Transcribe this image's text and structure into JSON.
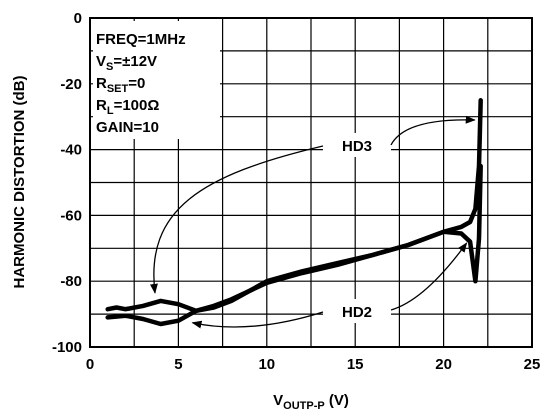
{
  "chart_data": {
    "type": "line",
    "xlabel": {
      "main": "V",
      "sub": "OUTP-P",
      "unit": " (V)"
    },
    "ylabel": "HARMONIC DISTORTION (dB)",
    "xlim": [
      0,
      25
    ],
    "ylim": [
      -100,
      0
    ],
    "x_ticks": [
      0,
      5,
      10,
      15,
      20,
      25
    ],
    "y_ticks": [
      0,
      -20,
      -40,
      -60,
      -80,
      -100
    ],
    "x_grid_step": 2.5,
    "y_grid_step": 10,
    "grid": true,
    "conditions": [
      {
        "main": "FREQ=1MHz",
        "sub": ""
      },
      {
        "main": "V",
        "sub": "S",
        "rest": "=±12V"
      },
      {
        "main": "R",
        "sub": "SET",
        "rest": "=0"
      },
      {
        "main": "R",
        "sub": "L",
        "rest": "=100Ω"
      },
      {
        "main": "GAIN=10",
        "sub": ""
      }
    ],
    "series": [
      {
        "name": "HD3",
        "x": [
          1,
          1.5,
          2,
          3,
          4,
          5,
          6,
          7,
          8,
          9,
          10,
          12,
          14,
          16,
          18,
          20,
          21,
          21.5,
          21.8,
          22,
          22.1
        ],
        "y": [
          -88.5,
          -88,
          -88.5,
          -87.5,
          -86,
          -87,
          -89,
          -88,
          -86,
          -83,
          -80,
          -77,
          -74.5,
          -72,
          -69,
          -65,
          -63.5,
          -62,
          -58,
          -45,
          -25
        ]
      },
      {
        "name": "HD2",
        "x": [
          1,
          2,
          3,
          4,
          5,
          6,
          7,
          8,
          9,
          10,
          12,
          14,
          16,
          18,
          20,
          21,
          21.5,
          21.8,
          22,
          22.1
        ],
        "y": [
          -91,
          -90.5,
          -91.5,
          -93,
          -92,
          -89,
          -87.5,
          -85.5,
          -83,
          -80.5,
          -77.5,
          -75,
          -72,
          -69,
          -65,
          -65.5,
          -68,
          -80,
          -67,
          -45
        ]
      }
    ]
  }
}
